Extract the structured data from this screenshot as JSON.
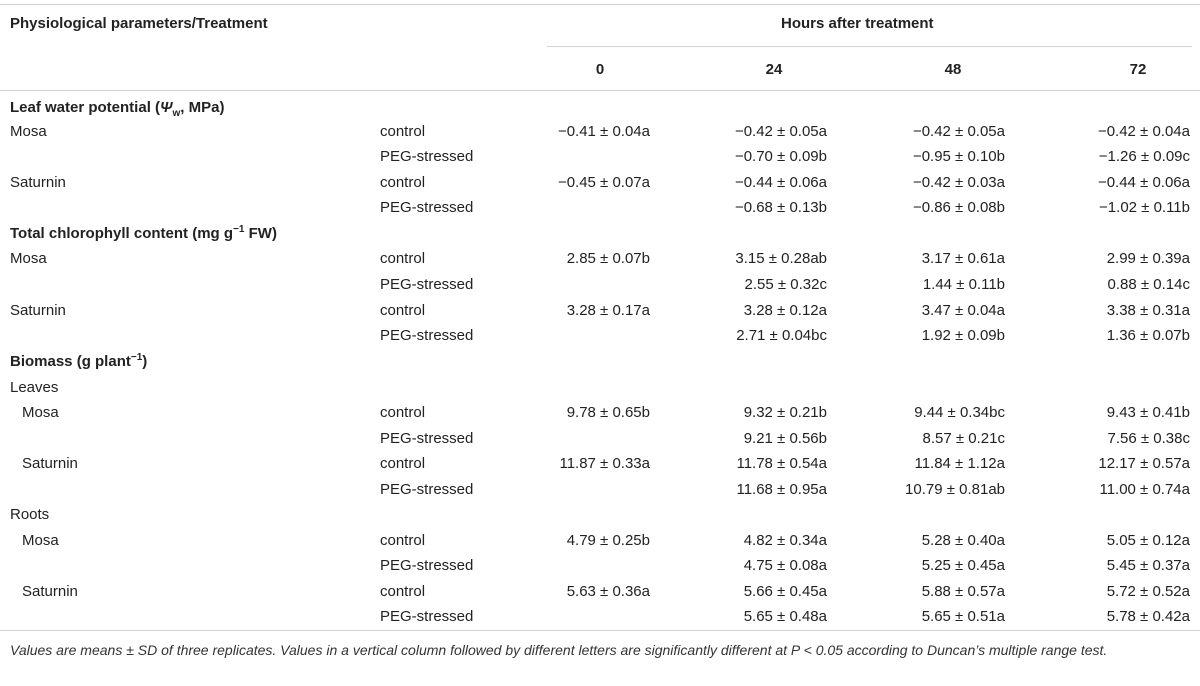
{
  "header": {
    "title": "Physiological parameters/Treatment",
    "hours_label": "Hours after treatment",
    "columns": [
      "0",
      "24",
      "48",
      "72"
    ]
  },
  "sections": [
    {
      "title": "Leaf water potential",
      "symbol": "Ψ",
      "symbol_sub": "w",
      "unit": ", MPa",
      "rows": [
        {
          "label": "Mosa",
          "treatment": "control",
          "values": [
            "−0.41 ± 0.04a",
            "−0.42 ± 0.05a",
            "−0.42 ± 0.05a",
            "−0.42 ± 0.04a"
          ]
        },
        {
          "label": "",
          "treatment": "PEG-stressed",
          "values": [
            "",
            "−0.70 ± 0.09b",
            "−0.95 ± 0.10b",
            "−1.26 ± 0.09c"
          ]
        },
        {
          "label": "Saturnin",
          "treatment": "control",
          "values": [
            "−0.45 ± 0.07a",
            "−0.44 ± 0.06a",
            "−0.42 ± 0.03a",
            "−0.44 ± 0.06a"
          ]
        },
        {
          "label": "",
          "treatment": "PEG-stressed",
          "values": [
            "",
            "−0.68 ± 0.13b",
            "−0.86 ± 0.08b",
            "−1.02 ± 0.11b"
          ]
        }
      ]
    },
    {
      "title": "Total chlorophyll content (mg g",
      "sup": "−1",
      "unit": " FW)",
      "rows": [
        {
          "label": "Mosa",
          "treatment": "control",
          "values": [
            "2.85 ± 0.07b",
            "3.15 ± 0.28ab",
            "3.17 ± 0.61a",
            "2.99 ± 0.39a"
          ]
        },
        {
          "label": "",
          "treatment": "PEG-stressed",
          "values": [
            "",
            "2.55 ± 0.32c",
            "1.44 ± 0.11b",
            "0.88 ± 0.14c"
          ]
        },
        {
          "label": "Saturnin",
          "treatment": "control",
          "values": [
            "3.28 ± 0.17a",
            "3.28 ± 0.12a",
            "3.47 ± 0.04a",
            "3.38 ± 0.31a"
          ]
        },
        {
          "label": "",
          "treatment": "PEG-stressed",
          "values": [
            "",
            "2.71 ± 0.04bc",
            "1.92 ± 0.09b",
            "1.36 ± 0.07b"
          ]
        }
      ]
    },
    {
      "title": "Biomass (g plant",
      "sup": "−1",
      "unit": ")",
      "leaves_label": "Leaves",
      "roots_label": "Roots",
      "leaves_rows": [
        {
          "label": "Mosa",
          "treatment": "control",
          "values": [
            "9.78 ± 0.65b",
            "9.32 ± 0.21b",
            "9.44 ± 0.34bc",
            "9.43 ± 0.41b"
          ]
        },
        {
          "label": "",
          "treatment": "PEG-stressed",
          "values": [
            "",
            "9.21 ± 0.56b",
            "8.57 ± 0.21c",
            "7.56 ± 0.38c"
          ]
        },
        {
          "label": "Saturnin",
          "treatment": "control",
          "values": [
            "11.87 ± 0.33a",
            "11.78 ± 0.54a",
            "11.84 ± 1.12a",
            "12.17 ± 0.57a"
          ]
        },
        {
          "label": "",
          "treatment": "PEG-stressed",
          "values": [
            "",
            "11.68 ± 0.95a",
            "10.79 ± 0.81ab",
            "11.00 ± 0.74a"
          ]
        }
      ],
      "roots_rows": [
        {
          "label": "Mosa",
          "treatment": "control",
          "values": [
            "4.79 ± 0.25b",
            "4.82 ± 0.34a",
            "5.28 ± 0.40a",
            "5.05 ± 0.12a"
          ]
        },
        {
          "label": "",
          "treatment": "PEG-stressed",
          "values": [
            "",
            "4.75 ± 0.08a",
            "5.25 ± 0.45a",
            "5.45 ± 0.37a"
          ]
        },
        {
          "label": "Saturnin",
          "treatment": "control",
          "values": [
            "5.63 ± 0.36a",
            "5.66 ± 0.45a",
            "5.88 ± 0.57a",
            "5.72 ± 0.52a"
          ]
        },
        {
          "label": "",
          "treatment": "PEG-stressed",
          "values": [
            "",
            "5.65 ± 0.48a",
            "5.65 ± 0.51a",
            "5.78 ± 0.42a"
          ]
        }
      ]
    }
  ],
  "footnote": "Values are means ± SD of three replicates. Values in a vertical column followed by different letters are significantly different at P < 0.05 according to Duncan’s multiple range test."
}
